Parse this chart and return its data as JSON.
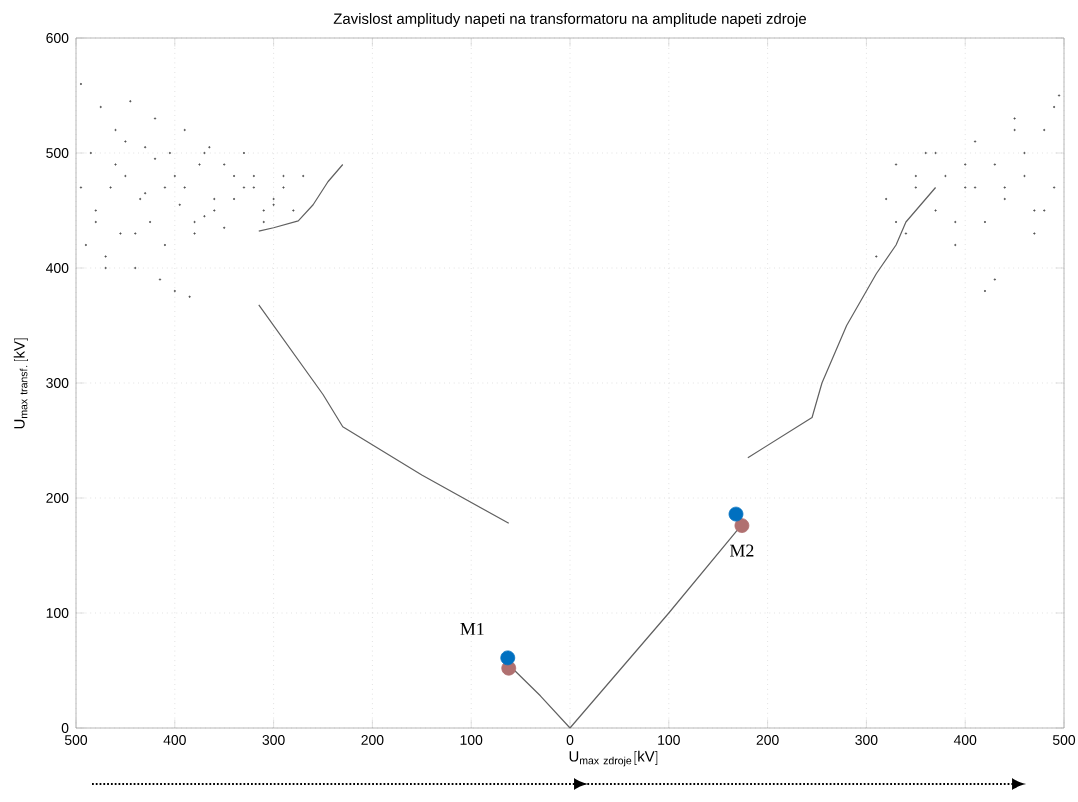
{
  "chart_data": {
    "type": "line",
    "title": "Zavislost amplitudy napeti na transformatoru na amplitude napeti zdroje",
    "xlabel": "\\mathrm{U_{max\\ zdroje}[kV]}",
    "ylabel": "\\mathrm{U_{max\\ transf.}[kV]}",
    "xlim": [
      -500,
      500
    ],
    "ylim": [
      0,
      600
    ],
    "xticks": [
      {
        "value": -500,
        "label": "500"
      },
      {
        "value": -400,
        "label": "400"
      },
      {
        "value": -300,
        "label": "300"
      },
      {
        "value": -200,
        "label": "200"
      },
      {
        "value": -100,
        "label": "100"
      },
      0,
      100,
      200,
      300,
      400,
      500
    ],
    "yticks": [
      0,
      100,
      200,
      300,
      400,
      500,
      600
    ],
    "grid": true,
    "series": [
      {
        "color": "#606060",
        "marker": "none",
        "line_style": "solid",
        "x": [
          0,
          -30,
          -62,
          null,
          -62,
          -150,
          -230,
          -250,
          -315,
          null,
          -315,
          -300,
          -275,
          -260,
          -245,
          -230,
          null,
          0,
          100,
          175,
          null,
          180,
          245,
          255,
          280,
          300,
          310,
          330,
          340,
          370
        ],
        "values": [
          0,
          28,
          55,
          null,
          178,
          220,
          262,
          290,
          368,
          null,
          432,
          435,
          441,
          455,
          475,
          490,
          null,
          0,
          100,
          178,
          null,
          235,
          270,
          300,
          350,
          380,
          395,
          420,
          440,
          470
        ]
      },
      {
        "type": "scatter",
        "color": "#505050",
        "marker": "circle",
        "x": [
          -495,
          -490,
          -485,
          -480,
          -475,
          -470,
          -465,
          -460,
          -455,
          -450,
          -445,
          -440,
          -435,
          -430,
          -425,
          -420,
          -415,
          -410,
          -405,
          -400,
          -395,
          -390,
          -385,
          -380,
          -375,
          -370,
          -365,
          -360,
          -350,
          -340,
          -330,
          -320,
          -310,
          -300,
          -290,
          -280,
          -270,
          -495,
          -480,
          -470,
          -460,
          -450,
          -440,
          -430,
          -420,
          -410,
          -400,
          -390,
          -380,
          -370,
          -360,
          -350,
          -340,
          -330,
          -320,
          -310,
          -300,
          -290,
          320,
          330,
          340,
          350,
          360,
          370,
          380,
          390,
          400,
          410,
          420,
          430,
          440,
          450,
          460,
          470,
          480,
          490,
          495,
          310,
          330,
          350,
          370,
          390,
          410,
          430,
          450,
          470,
          490,
          420,
          440,
          460,
          480,
          400
        ],
        "values": [
          560,
          420,
          500,
          450,
          540,
          410,
          470,
          520,
          430,
          480,
          545,
          400,
          460,
          505,
          440,
          530,
          390,
          470,
          500,
          380,
          455,
          520,
          375,
          430,
          490,
          445,
          505,
          460,
          435,
          480,
          500,
          470,
          440,
          455,
          470,
          450,
          480,
          470,
          440,
          400,
          490,
          510,
          430,
          465,
          495,
          420,
          480,
          470,
          440,
          500,
          450,
          490,
          460,
          470,
          480,
          450,
          460,
          480,
          460,
          490,
          430,
          470,
          500,
          450,
          480,
          420,
          470,
          510,
          440,
          490,
          460,
          530,
          480,
          450,
          520,
          470,
          550,
          410,
          440,
          480,
          500,
          440,
          470,
          390,
          520,
          430,
          540,
          380,
          470,
          500,
          450,
          490
        ]
      },
      {
        "type": "scatter",
        "color": "#b07070",
        "marker": "circle",
        "x": [
          -62,
          174
        ],
        "values": [
          52,
          176
        ]
      },
      {
        "type": "scatter",
        "color": "#0070c0",
        "marker": "circle",
        "x": [
          -63,
          168
        ],
        "values": [
          61,
          186
        ]
      }
    ],
    "annotations": [
      {
        "text": "M1",
        "x": -63,
        "y": 61
      },
      {
        "text": "M2",
        "x": 174,
        "y": 176
      }
    ]
  }
}
